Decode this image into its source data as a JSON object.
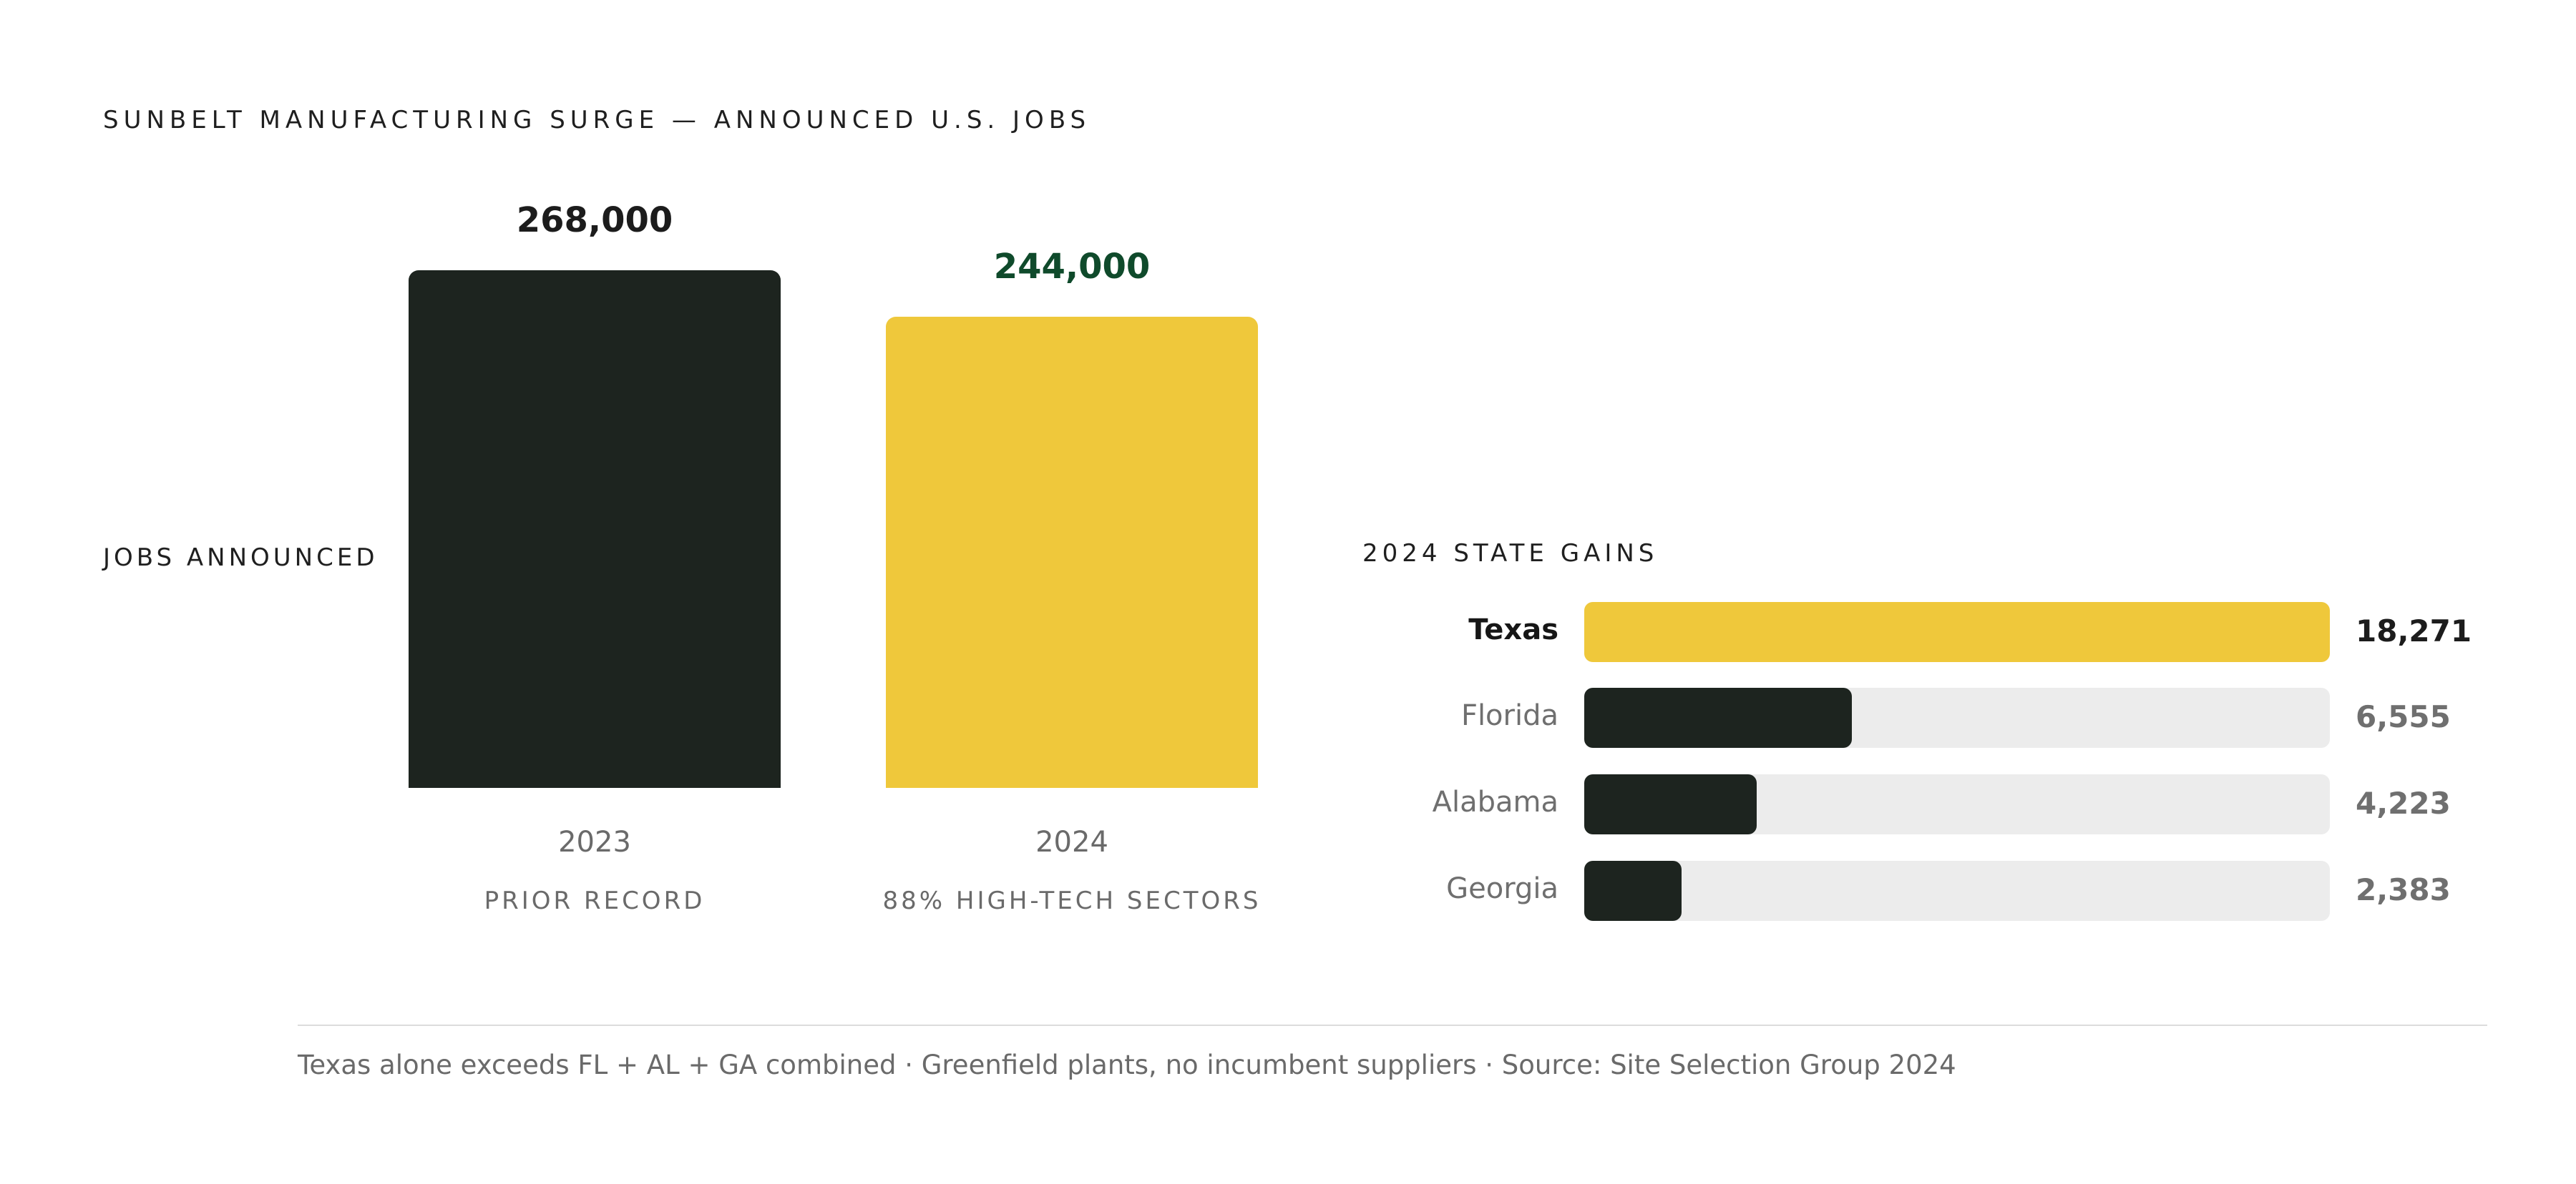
{
  "title": "SUNBELT MANUFACTURING SURGE — ANNOUNCED U.S. JOBS",
  "colors": {
    "dark_bar": "#1d241f",
    "highlight_bar": "#efc83b",
    "highlight_value_text": "#0f4a2b",
    "track": "#ececec"
  },
  "chart_data": [
    {
      "type": "bar",
      "ylabel": "JOBS ANNOUNCED",
      "categories": [
        "2023",
        "2024"
      ],
      "values": [
        268000,
        244000
      ],
      "value_labels": [
        "268,000",
        "244,000"
      ],
      "category_notes": [
        "PRIOR RECORD",
        "88% HIGH-TECH SECTORS"
      ],
      "grid": false
    },
    {
      "type": "bar",
      "orientation": "horizontal",
      "title": "2024 STATE GAINS",
      "categories": [
        "Texas",
        "Florida",
        "Alabama",
        "Georgia"
      ],
      "values": [
        18271,
        6555,
        4223,
        2383
      ],
      "value_labels": [
        "18,271",
        "6,555",
        "4,223",
        "2,383"
      ],
      "grid": false
    }
  ],
  "footnote": "Texas alone exceeds FL + AL + GA combined · Greenfield plants, no incumbent suppliers · Source: Site Selection Group 2024"
}
